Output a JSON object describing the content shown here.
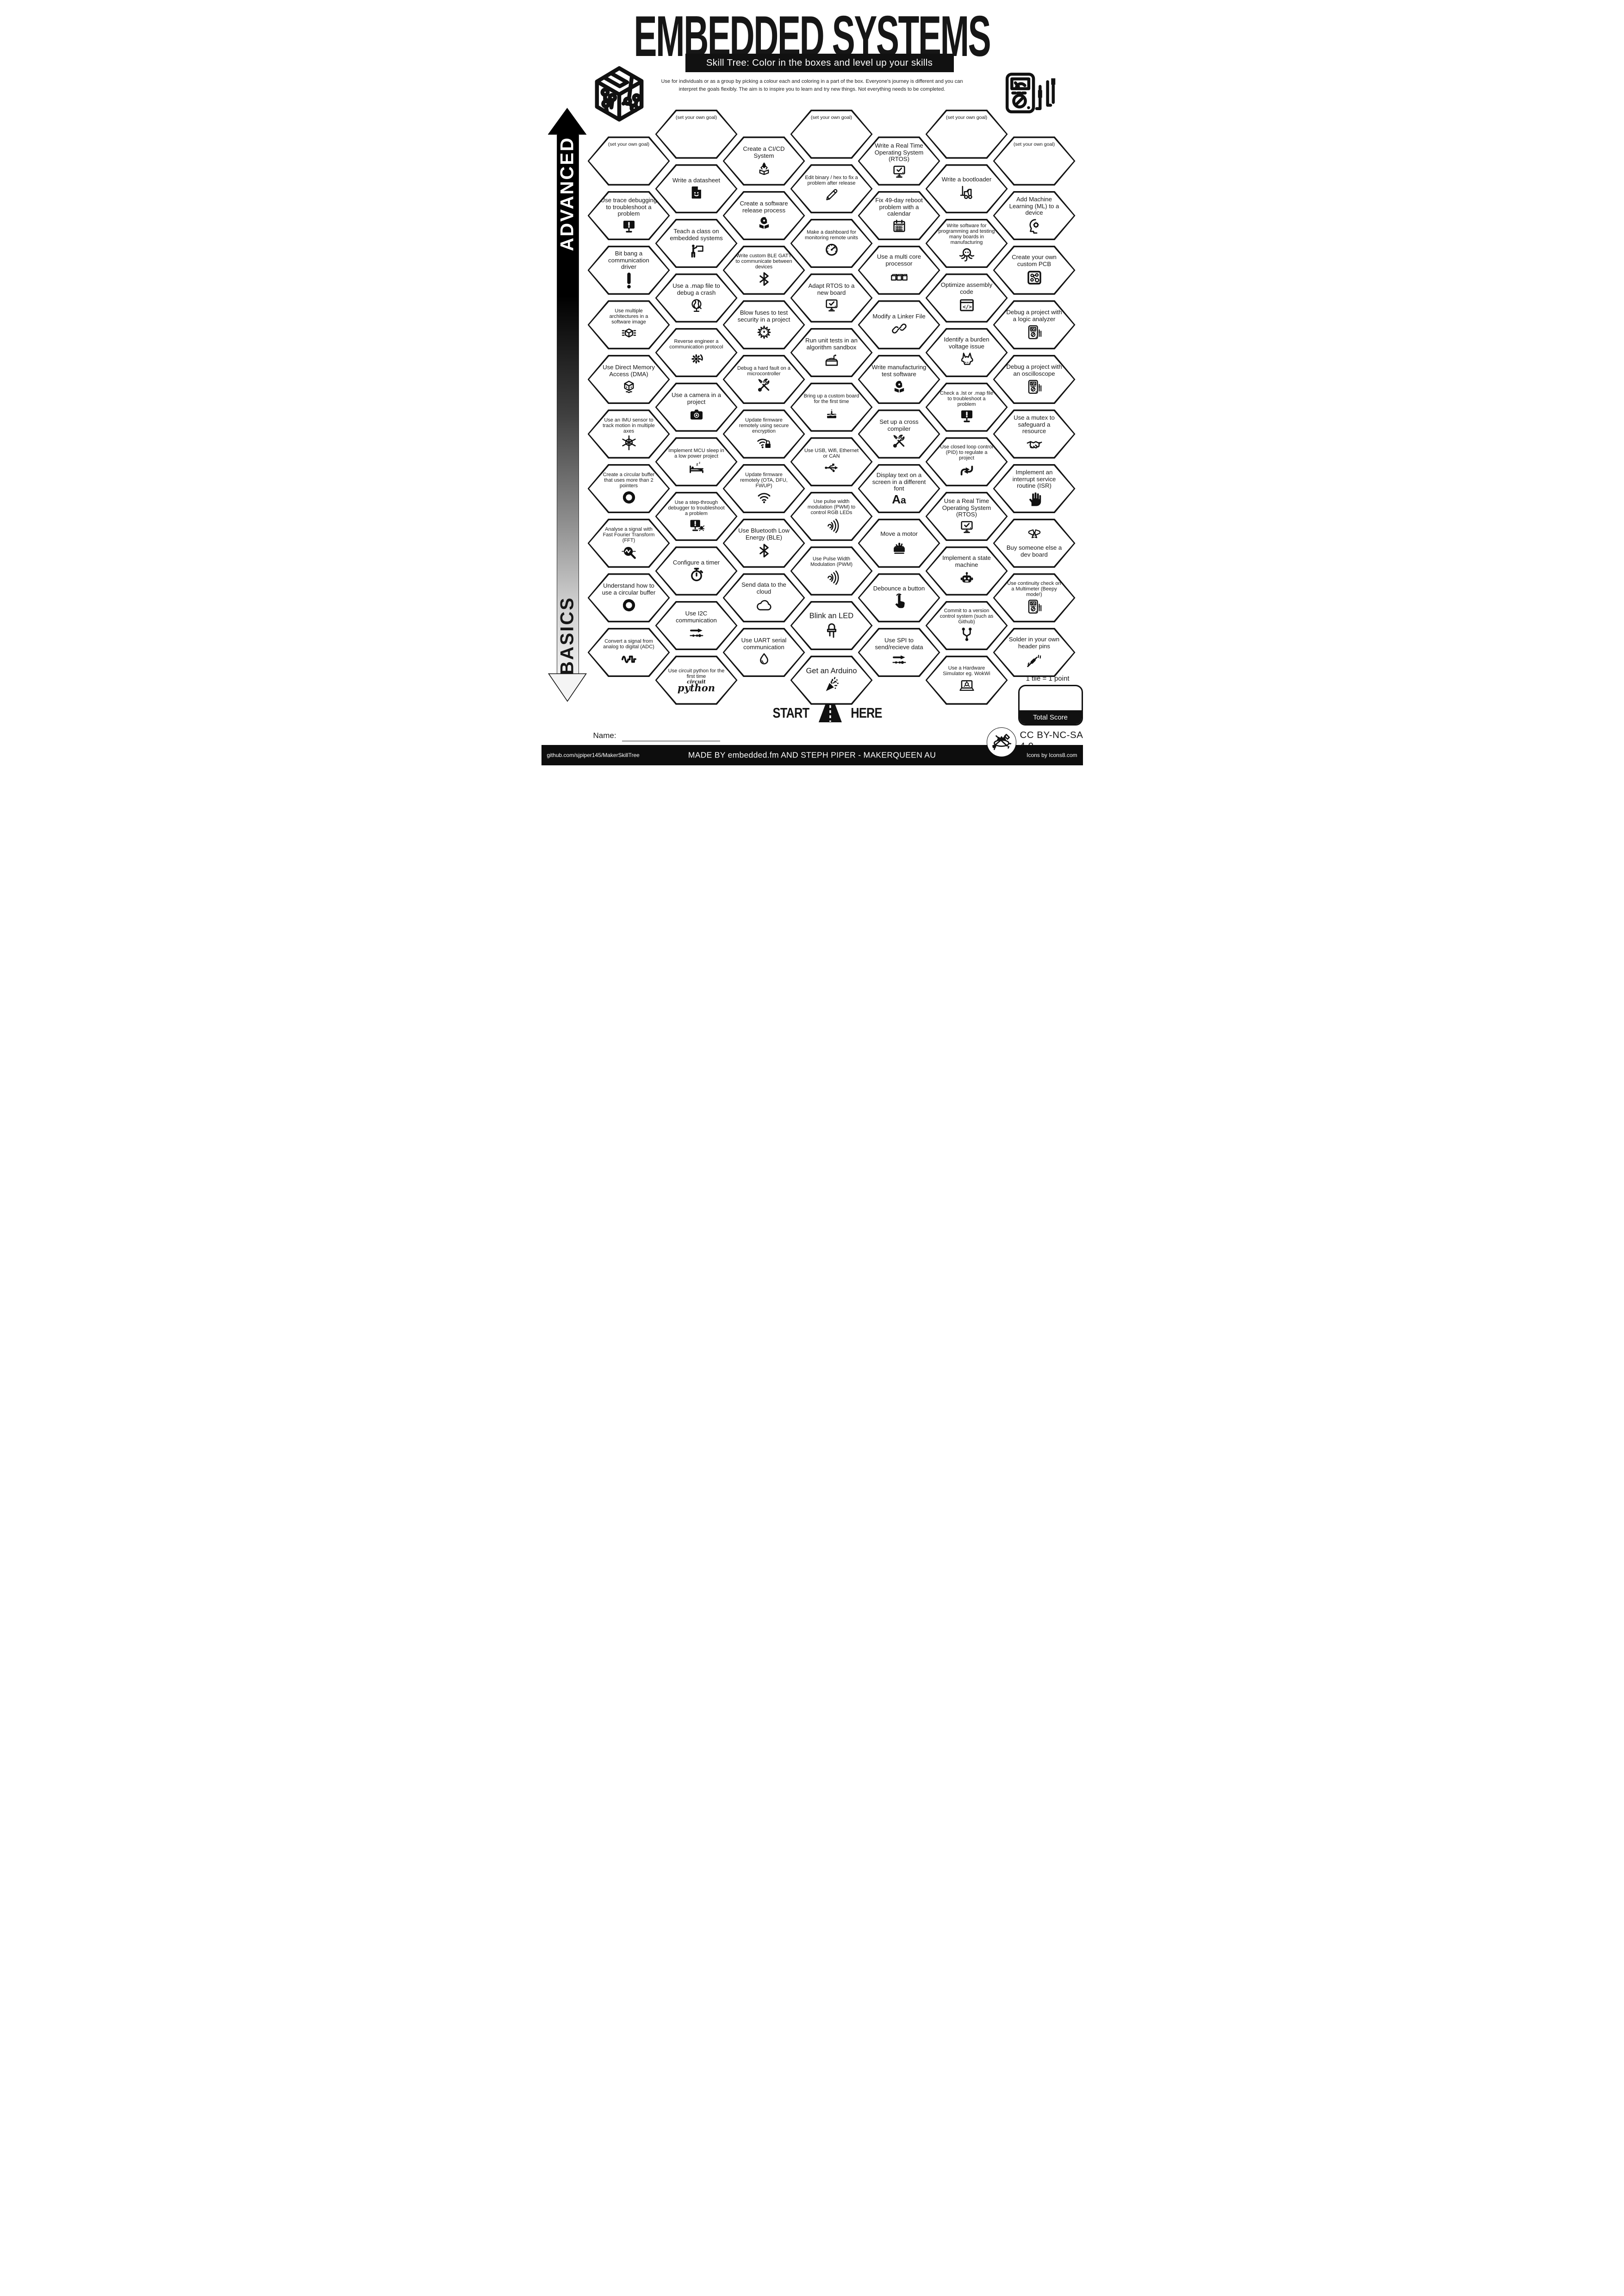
{
  "title": "EMBEDDED SYSTEMS",
  "banner": "Skill Tree:  Color in the boxes and level up your skills",
  "description_line1": "Use for individuals or as a group by picking a colour each and coloring in a part of the box.  Everyone's journey is different and you can",
  "description_line2": "interpret the goals flexibly.  The aim is to inspire you to learn and try new things. Not everything needs to be completed.",
  "sidebar": {
    "top_label": "ADVANCED",
    "bottom_label": "BASICS"
  },
  "columns": [
    {
      "tiles": [
        {
          "label": "(set your own goal)",
          "icon": "",
          "variant": "goal"
        },
        {
          "label": "Use trace debugging to troubleshoot a problem",
          "icon": "monitor-alert",
          "variant": ""
        },
        {
          "label": "Bit bang a communication driver",
          "icon": "exclamation",
          "variant": ""
        },
        {
          "label": "Use multiple architectures in a software image",
          "icon": "arch-cube",
          "variant": "small"
        },
        {
          "label": "Use Direct Memory Access (DMA)",
          "icon": "dma-cube",
          "variant": ""
        },
        {
          "label": "Use an IMU sensor to track motion in multiple axes",
          "icon": "imu-cube",
          "variant": "small"
        },
        {
          "label": "Create a circular buffer that uses more than 2 pointers",
          "icon": "ring",
          "variant": "small"
        },
        {
          "label": "Analyse a signal with Fast Fourier Transform (FFT)",
          "icon": "fft",
          "variant": "small"
        },
        {
          "label": "Understand how to use a circular buffer",
          "icon": "ring",
          "variant": ""
        },
        {
          "label": "Convert a signal from analog to digital (ADC)",
          "icon": "adc-wave",
          "variant": "small"
        }
      ]
    },
    {
      "tiles": [
        {
          "label": "(set your own goal)",
          "icon": "",
          "variant": "goal"
        },
        {
          "label": "Write a datasheet",
          "icon": "doc-smiley",
          "variant": ""
        },
        {
          "label": "Teach a class on embedded systems",
          "icon": "teacher",
          "variant": ""
        },
        {
          "label": "Use a .map file to debug a crash",
          "icon": "globe",
          "variant": ""
        },
        {
          "label": "Reverse engineer a communication protocol",
          "icon": "gear-arrow",
          "variant": "small"
        },
        {
          "label": "Use a camera in a project",
          "icon": "camera",
          "variant": ""
        },
        {
          "label": "Implement MCU sleep in a low power project",
          "icon": "bed",
          "variant": "small"
        },
        {
          "label": "Use a step-through debugger to troubleshoot a problem",
          "icon": "monitor-bug",
          "variant": "small"
        },
        {
          "label": "Configure a timer",
          "icon": "stopwatch",
          "variant": ""
        },
        {
          "label": "Use I2C communication",
          "icon": "bus",
          "variant": ""
        },
        {
          "label": "Use circuit python for the first time",
          "icon": "circuitpython",
          "variant": "small"
        }
      ]
    },
    {
      "tiles": [
        {
          "label": "Create a CI/CD System",
          "icon": "rocket-box",
          "variant": ""
        },
        {
          "label": "Create a software release process",
          "icon": "release-box",
          "variant": ""
        },
        {
          "label": "Write custom BLE GATT to communicate between devices",
          "icon": "bluetooth",
          "variant": "small"
        },
        {
          "label": "Blow fuses to test security in a project",
          "icon": "explosion",
          "variant": ""
        },
        {
          "label": "Debug a hard fault on a microcontroller",
          "icon": "tools",
          "variant": "small"
        },
        {
          "label": "Update firmware remotely using secure encryption",
          "icon": "wifi-lock",
          "variant": "small"
        },
        {
          "label": "Update firmware remotely (OTA, DFU, FWUP)",
          "icon": "wifi",
          "variant": "small"
        },
        {
          "label": "Use Bluetooth Low Energy (BLE)",
          "icon": "bluetooth",
          "variant": ""
        },
        {
          "label": "Send data to the cloud",
          "icon": "cloud",
          "variant": ""
        },
        {
          "label": "Use UART serial communication",
          "icon": "drop",
          "variant": ""
        }
      ]
    },
    {
      "tiles": [
        {
          "label": "(set your own goal)",
          "icon": "",
          "variant": "goal"
        },
        {
          "label": "Edit binary / hex to fix a problem after release",
          "icon": "pencil",
          "variant": "small"
        },
        {
          "label": "Make a dashboard for monitoring remote units",
          "icon": "gauge",
          "variant": "small"
        },
        {
          "label": "Adapt RTOS to a new board",
          "icon": "monitor-check",
          "variant": ""
        },
        {
          "label": "Run unit tests in an algorithm sandbox",
          "icon": "sandbox",
          "variant": ""
        },
        {
          "label": "Bring up a custom board for the first time",
          "icon": "cake",
          "variant": "small"
        },
        {
          "label": "Use USB, Wifi, Ethernet or CAN",
          "icon": "usb",
          "variant": "small"
        },
        {
          "label": "Use pulse width modulation (PWM) to control RGB LEDs",
          "icon": "pwm",
          "variant": "small"
        },
        {
          "label": "Use Pulse Width Modulation (PWM)",
          "icon": "pwm",
          "variant": "small"
        },
        {
          "label": "Blink an LED",
          "icon": "led",
          "variant": "big"
        },
        {
          "label": "Get an Arduino",
          "icon": "party",
          "variant": "big"
        }
      ]
    },
    {
      "tiles": [
        {
          "label": "Write a Real Time Operating System (RTOS)",
          "icon": "monitor-check",
          "variant": ""
        },
        {
          "label": "Fix 49-day reboot problem with a calendar",
          "icon": "calendar",
          "variant": ""
        },
        {
          "label": "Use a multi core processor",
          "icon": "cubes",
          "variant": ""
        },
        {
          "label": "Modify a Linker File",
          "icon": "chain",
          "variant": ""
        },
        {
          "label": "Write manufacturing test software",
          "icon": "release-box",
          "variant": ""
        },
        {
          "label": "Set up a cross compiler",
          "icon": "tools",
          "variant": ""
        },
        {
          "label": "Display text on a screen in a different font",
          "icon": "font",
          "variant": ""
        },
        {
          "label": "Move a motor",
          "icon": "motor",
          "variant": ""
        },
        {
          "label": "Debounce a button",
          "icon": "finger",
          "variant": ""
        },
        {
          "label": "Use SPI to send/recieve data",
          "icon": "bus",
          "variant": ""
        }
      ]
    },
    {
      "tiles": [
        {
          "label": "(set your own goal)",
          "icon": "",
          "variant": "goal"
        },
        {
          "label": "Write a bootloader",
          "icon": "forklift",
          "variant": ""
        },
        {
          "label": "Write software for programming and testing many boards in manufacturing",
          "icon": "octopus",
          "variant": "small"
        },
        {
          "label": "Optimize assembly code",
          "icon": "code",
          "variant": ""
        },
        {
          "label": "Identify a burden voltage issue",
          "icon": "donkey",
          "variant": ""
        },
        {
          "label": "Check a .lst or .map file to troubleshoot a problem",
          "icon": "monitor-alert",
          "variant": "small"
        },
        {
          "label": "Use closed loop control (PID) to regulate a project",
          "icon": "pid",
          "variant": "small"
        },
        {
          "label": "Use a Real Time Operating System (RTOS)",
          "icon": "monitor-check",
          "variant": ""
        },
        {
          "label": "Implement a state machine",
          "icon": "robot",
          "variant": ""
        },
        {
          "label": "Commit to a version control system (such as Github)",
          "icon": "git",
          "variant": "small"
        },
        {
          "label": "Use a Hardware Simulator eg. WokWi",
          "icon": "laptop",
          "variant": "small"
        }
      ]
    },
    {
      "tiles": [
        {
          "label": "(set your own goal)",
          "icon": "",
          "variant": "goal"
        },
        {
          "label": "Add Machine Learning (ML) to a device",
          "icon": "head-gear",
          "variant": ""
        },
        {
          "label": "Create your own custom PCB",
          "icon": "pcb",
          "variant": ""
        },
        {
          "label": "Debug a project with a logic analyzer",
          "icon": "multimeter",
          "variant": ""
        },
        {
          "label": "Debug a project with an oscilloscope",
          "icon": "multimeter",
          "variant": ""
        },
        {
          "label": "Use a mutex to safeguard a resource",
          "icon": "handshake",
          "variant": ""
        },
        {
          "label": "Implement an interrupt service routine (ISR)",
          "icon": "hand",
          "variant": ""
        },
        {
          "label": "Buy someone else a dev board",
          "icon": "bow",
          "variant": "icon-first"
        },
        {
          "label": "Use continuity check on a Multimeter (Beepy mode!)",
          "icon": "multimeter",
          "variant": "small"
        },
        {
          "label": "Solder in your own header pins",
          "icon": "solder",
          "variant": ""
        }
      ]
    }
  ],
  "start_here": {
    "start": "START",
    "here": "HERE"
  },
  "name_label": "Name:",
  "scoring": {
    "tile_points": "1 tile = 1 point",
    "total_label": "Total Score"
  },
  "license": "CC BY-NC-SA 4.0",
  "footer": {
    "left": "github.com/sjpiper145/MakerSkillTree",
    "center": "MADE BY embedded.fm AND STEPH PIPER  -  MAKERQUEEN AU",
    "right": "Icons by Icons8.com"
  }
}
